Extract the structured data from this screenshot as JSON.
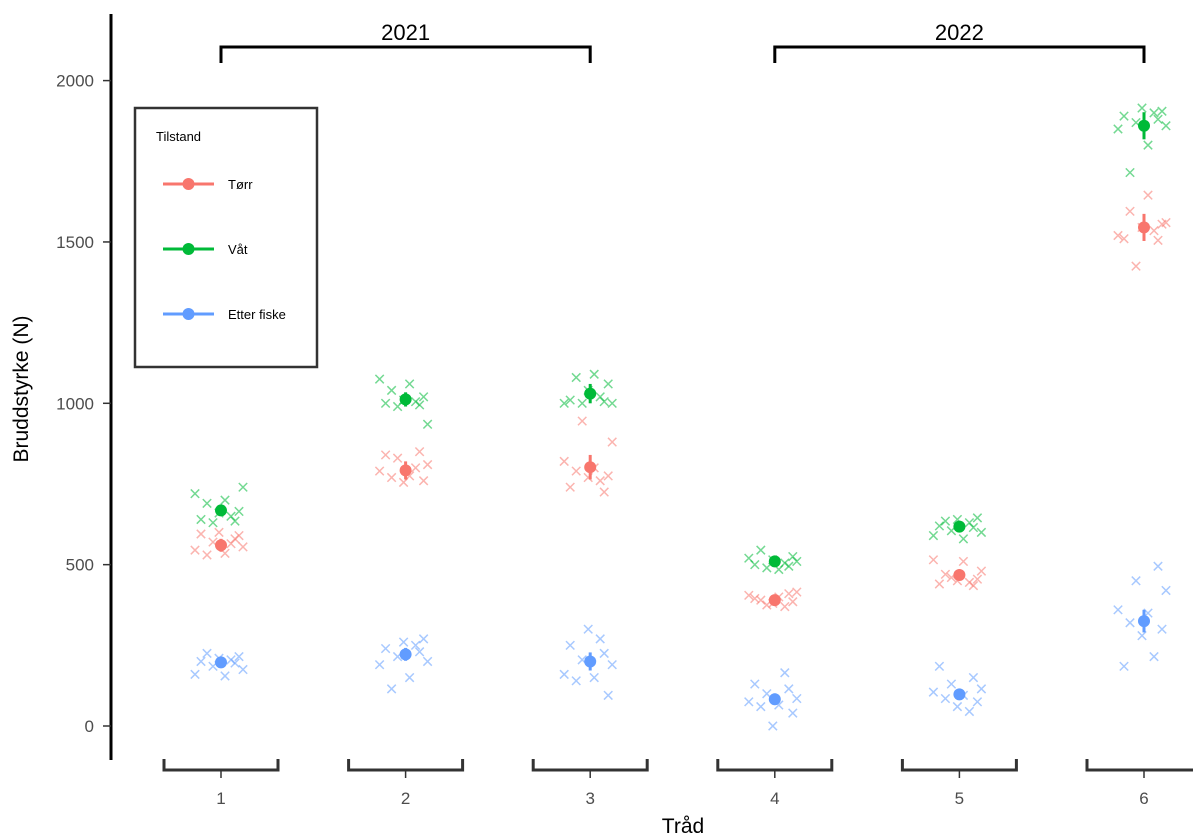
{
  "chart_data": {
    "type": "scatter",
    "xlabel": "Tråd",
    "ylabel": "Bruddstyrke (N)",
    "categories": [
      "1",
      "2",
      "3",
      "4",
      "5",
      "6"
    ],
    "yticks": [
      0,
      500,
      1000,
      1500,
      2000
    ],
    "ylim": [
      -100,
      2200
    ],
    "grid": false,
    "legend": {
      "title": "Tilstand",
      "placement": "top-left",
      "entries": [
        "Tørr",
        "Våt",
        "Etter fiske"
      ]
    },
    "groups": [
      {
        "label": "2021",
        "categories": [
          "1",
          "2",
          "3"
        ]
      },
      {
        "label": "2022",
        "categories": [
          "4",
          "5",
          "6"
        ]
      }
    ],
    "series": [
      {
        "name": "Tørr",
        "color": "#F8766D",
        "means": [
          560,
          792,
          802,
          390,
          468,
          1545
        ],
        "errors": [
          20,
          28,
          38,
          15,
          15,
          42
        ],
        "points": [
          [
            595,
            580,
            570,
            555,
            545,
            535,
            530,
            590,
            600,
            565
          ],
          [
            850,
            830,
            810,
            790,
            775,
            770,
            760,
            755,
            800,
            840
          ],
          [
            945,
            880,
            820,
            800,
            790,
            775,
            770,
            760,
            740,
            725
          ],
          [
            415,
            405,
            400,
            390,
            385,
            380,
            370,
            395,
            410,
            375
          ],
          [
            515,
            510,
            470,
            455,
            450,
            445,
            440,
            435,
            460,
            480
          ],
          [
            1645,
            1595,
            1555,
            1545,
            1535,
            1510,
            1505,
            1425,
            1560,
            1520
          ]
        ]
      },
      {
        "name": "Våt",
        "color": "#00BA38",
        "means": [
          668,
          1012,
          1030,
          510,
          618,
          1860
        ],
        "errors": [
          8,
          22,
          30,
          14,
          14,
          42
        ],
        "points": [
          [
            740,
            720,
            700,
            690,
            665,
            660,
            650,
            640,
            635,
            630
          ],
          [
            1075,
            1060,
            1040,
            1020,
            1010,
            1005,
            1000,
            995,
            990,
            935
          ],
          [
            1090,
            1080,
            1060,
            1040,
            1020,
            1010,
            1005,
            1000,
            1000,
            1000
          ],
          [
            545,
            525,
            515,
            505,
            500,
            495,
            490,
            510,
            520,
            485
          ],
          [
            645,
            640,
            630,
            620,
            615,
            605,
            600,
            590,
            580,
            635
          ],
          [
            1915,
            1900,
            1890,
            1880,
            1870,
            1860,
            1850,
            1800,
            1715,
            1905
          ]
        ]
      },
      {
        "name": "Etter fiske",
        "color": "#619CFF",
        "means": [
          197,
          222,
          200,
          83,
          98,
          325
        ],
        "errors": [
          10,
          20,
          28,
          18,
          15,
          35
        ],
        "points": [
          [
            225,
            215,
            210,
            205,
            200,
            195,
            185,
            175,
            160,
            155
          ],
          [
            270,
            260,
            250,
            240,
            230,
            215,
            200,
            190,
            150,
            115
          ],
          [
            300,
            270,
            250,
            225,
            205,
            190,
            160,
            150,
            140,
            95
          ],
          [
            165,
            130,
            115,
            100,
            85,
            75,
            65,
            60,
            40,
            0
          ],
          [
            185,
            150,
            130,
            115,
            105,
            95,
            85,
            75,
            60,
            45
          ],
          [
            495,
            450,
            420,
            360,
            350,
            320,
            300,
            280,
            215,
            185
          ]
        ]
      }
    ]
  }
}
